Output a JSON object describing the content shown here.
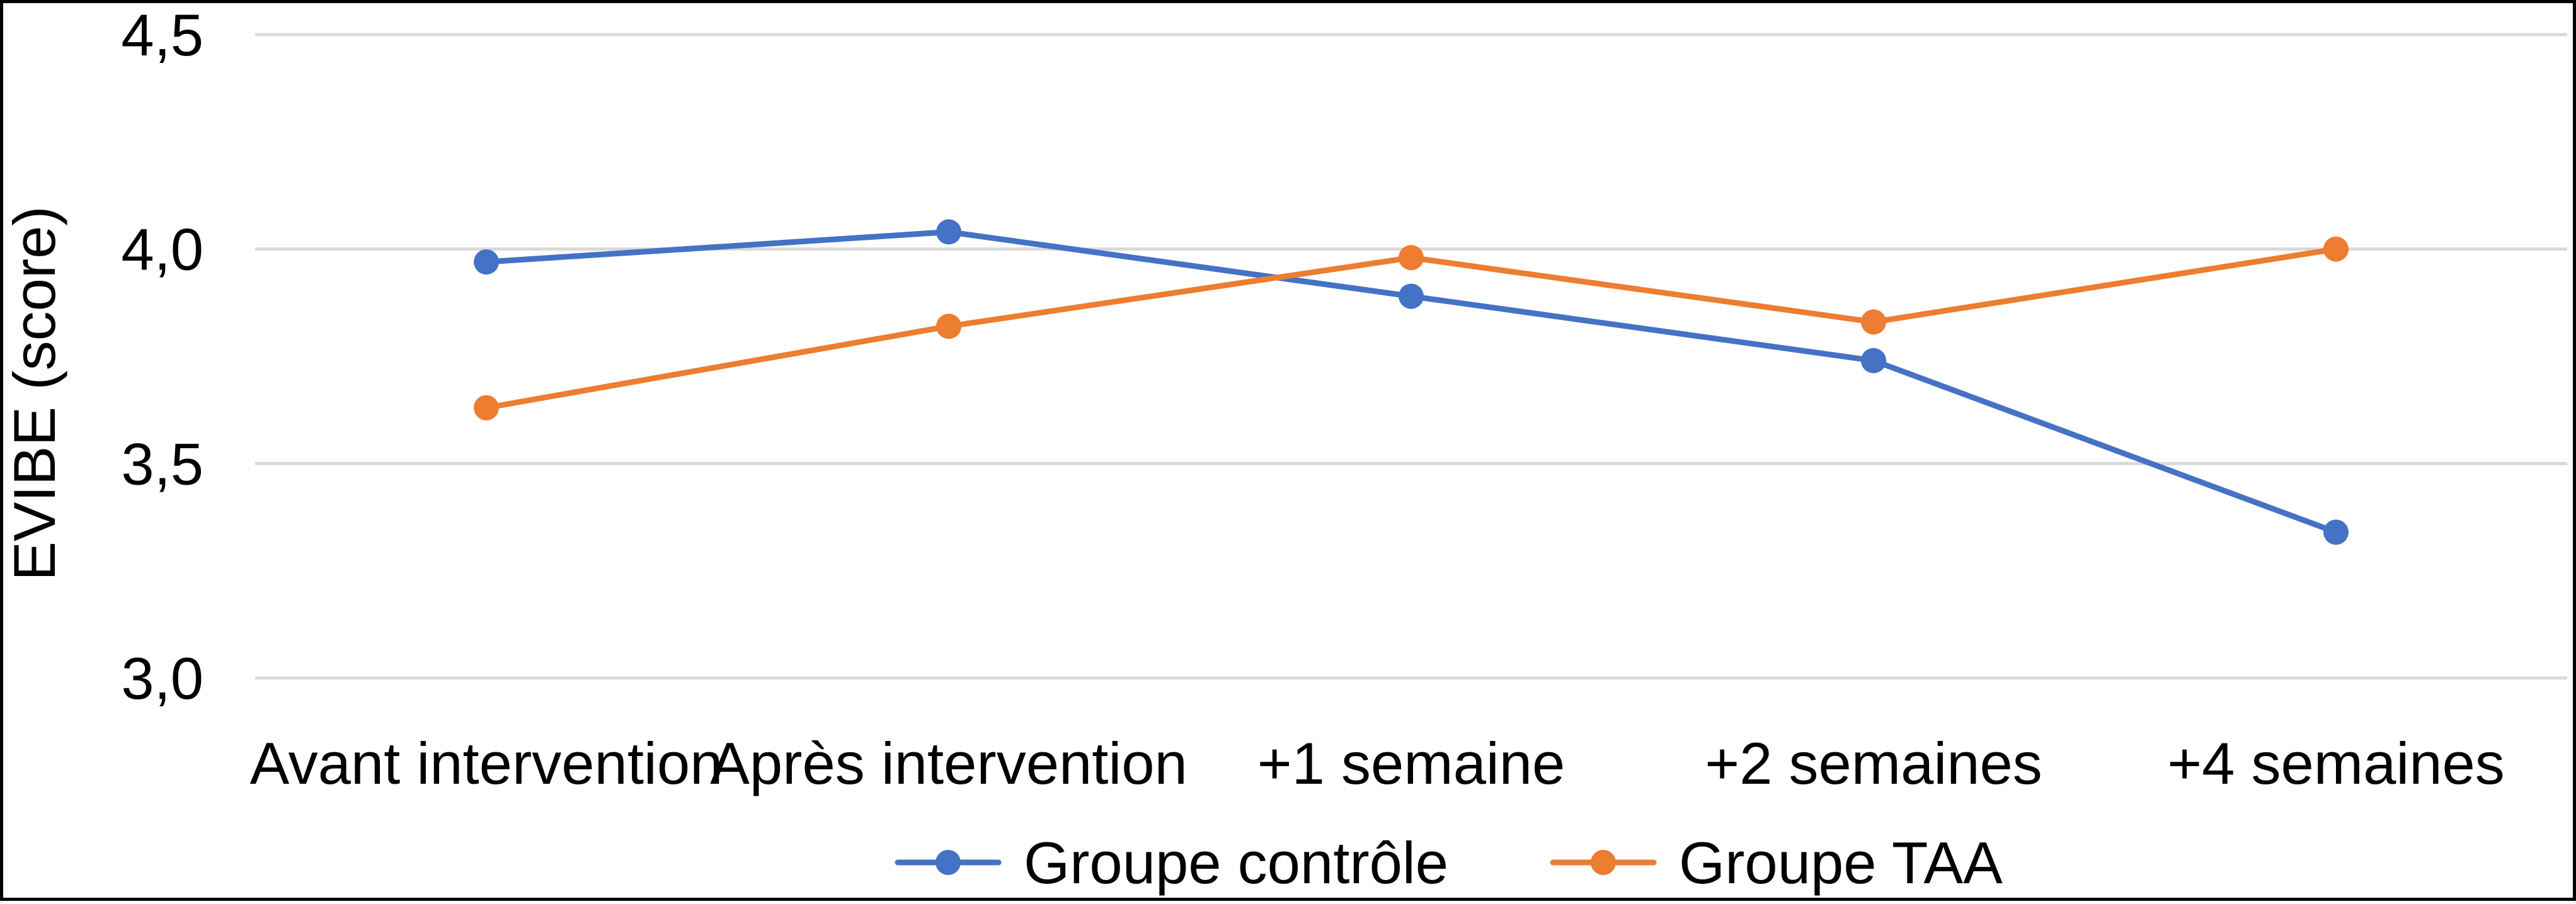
{
  "chart_data": {
    "type": "line",
    "title": "",
    "xlabel": "",
    "ylabel": "EVIBE (score)",
    "categories": [
      "Avant intervention",
      "Après intervention",
      "+1 semaine",
      "+2 semaines",
      "+4 semaines"
    ],
    "series": [
      {
        "name": "Groupe contrôle",
        "color": "#4472C4",
        "values": [
          3.97,
          4.04,
          3.89,
          3.74,
          3.34
        ]
      },
      {
        "name": "Groupe TAA",
        "color": "#ED7D31",
        "values": [
          3.63,
          3.82,
          3.98,
          3.83,
          4.0
        ]
      }
    ],
    "ylim": [
      3.0,
      4.5
    ],
    "yticks": [
      {
        "value": 3.0,
        "label": "3,0"
      },
      {
        "value": 3.5,
        "label": "3,5"
      },
      {
        "value": 4.0,
        "label": "4,0"
      },
      {
        "value": 4.5,
        "label": "4,5"
      }
    ],
    "grid": true,
    "gridline_color": "#D9D9D9",
    "legend_position": "bottom"
  }
}
